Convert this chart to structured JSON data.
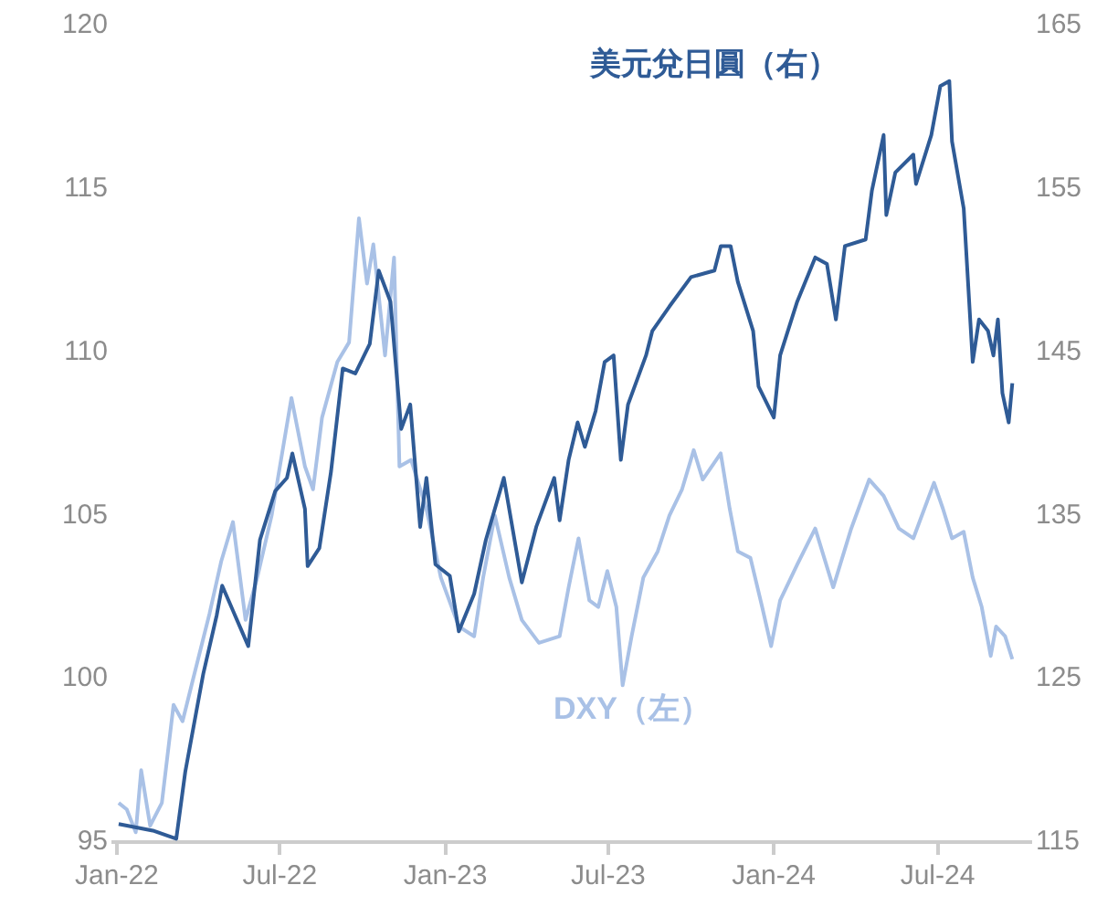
{
  "chart_data": {
    "type": "line",
    "marker": "none",
    "legend": false,
    "grid": false,
    "xlim": [
      "2021-12-28",
      "2024-10-12"
    ],
    "xticks": [
      {
        "value": "2022-01-01",
        "label": "Jan-22"
      },
      {
        "value": "2022-07-01",
        "label": "Jul-22"
      },
      {
        "value": "2023-01-01",
        "label": "Jan-23"
      },
      {
        "value": "2023-07-01",
        "label": "Jul-23"
      },
      {
        "value": "2024-01-01",
        "label": "Jan-24"
      },
      {
        "value": "2024-07-01",
        "label": "Jul-24"
      }
    ],
    "ylim": [
      95,
      120
    ],
    "yticks": [
      95,
      100,
      105,
      110,
      115,
      120
    ],
    "y2lim": [
      115,
      165
    ],
    "y2ticks": [
      115,
      125,
      135,
      145,
      155,
      165
    ],
    "series": [
      {
        "name": "DXY（左）",
        "color": "#a9c1e6",
        "x": [
          "2022-01-03",
          "2022-01-12",
          "2022-01-22",
          "2022-01-28",
          "2022-02-07",
          "2022-02-20",
          "2022-03-05",
          "2022-03-15",
          "2022-03-25",
          "2022-04-14",
          "2022-04-27",
          "2022-05-10",
          "2022-05-24",
          "2022-06-06",
          "2022-06-22",
          "2022-07-14",
          "2022-07-29",
          "2022-08-07",
          "2022-08-17",
          "2022-09-03",
          "2022-09-16",
          "2022-09-27",
          "2022-10-06",
          "2022-10-13",
          "2022-10-26",
          "2022-11-05",
          "2022-11-11",
          "2022-11-24",
          "2022-12-11",
          "2022-12-27",
          "2023-01-16",
          "2023-02-02",
          "2023-02-12",
          "2023-02-25",
          "2023-03-13",
          "2023-03-27",
          "2023-04-15",
          "2023-05-08",
          "2023-05-18",
          "2023-05-29",
          "2023-06-10",
          "2023-06-20",
          "2023-06-30",
          "2023-07-10",
          "2023-07-17",
          "2023-07-27",
          "2023-08-09",
          "2023-08-25",
          "2023-09-07",
          "2023-09-21",
          "2023-10-04",
          "2023-10-14",
          "2023-11-03",
          "2023-11-13",
          "2023-11-22",
          "2023-12-06",
          "2023-12-19",
          "2023-12-29",
          "2024-01-08",
          "2024-01-27",
          "2024-02-16",
          "2024-03-07",
          "2024-03-27",
          "2024-04-16",
          "2024-05-02",
          "2024-05-19",
          "2024-06-04",
          "2024-06-27",
          "2024-07-07",
          "2024-07-17",
          "2024-07-30",
          "2024-08-09",
          "2024-08-19",
          "2024-08-29",
          "2024-09-04",
          "2024-09-14",
          "2024-09-22"
        ],
        "values": [
          96.2,
          96.0,
          95.3,
          97.2,
          95.5,
          96.2,
          99.2,
          98.7,
          99.8,
          102.0,
          103.6,
          104.8,
          101.8,
          103.1,
          105.0,
          108.6,
          106.5,
          105.8,
          108.0,
          109.7,
          110.3,
          114.1,
          112.1,
          113.3,
          109.9,
          112.9,
          106.5,
          106.7,
          105.2,
          103.1,
          101.6,
          101.3,
          103.1,
          105.0,
          103.1,
          101.8,
          101.1,
          101.3,
          102.8,
          104.3,
          102.4,
          102.2,
          103.3,
          102.2,
          99.8,
          101.3,
          103.1,
          103.9,
          105.0,
          105.8,
          107.0,
          106.1,
          106.9,
          105.2,
          103.9,
          103.7,
          102.2,
          101.0,
          102.4,
          103.5,
          104.6,
          102.8,
          104.6,
          106.1,
          105.6,
          104.6,
          104.3,
          106.0,
          105.2,
          104.3,
          104.5,
          103.1,
          102.2,
          100.7,
          101.6,
          101.3,
          100.6
        ]
      },
      {
        "name": "美元兌日圓（右）",
        "color": "#2f5b96",
        "axis": "y2",
        "x": [
          "2022-01-03",
          "2022-02-10",
          "2022-03-08",
          "2022-03-18",
          "2022-04-07",
          "2022-04-22",
          "2022-04-28",
          "2022-05-20",
          "2022-05-27",
          "2022-06-09",
          "2022-06-26",
          "2022-07-09",
          "2022-07-15",
          "2022-07-29",
          "2022-08-01",
          "2022-08-14",
          "2022-08-27",
          "2022-09-09",
          "2022-09-23",
          "2022-10-09",
          "2022-10-19",
          "2022-11-01",
          "2022-11-13",
          "2022-11-23",
          "2022-12-04",
          "2022-12-11",
          "2022-12-21",
          "2023-01-06",
          "2023-01-16",
          "2023-02-02",
          "2023-02-15",
          "2023-03-07",
          "2023-03-27",
          "2023-04-12",
          "2023-05-02",
          "2023-05-08",
          "2023-05-18",
          "2023-05-28",
          "2023-06-05",
          "2023-06-17",
          "2023-06-27",
          "2023-07-07",
          "2023-07-15",
          "2023-07-23",
          "2023-08-12",
          "2023-08-19",
          "2023-09-07",
          "2023-10-01",
          "2023-10-27",
          "2023-11-03",
          "2023-11-14",
          "2023-11-22",
          "2023-12-09",
          "2023-12-15",
          "2024-01-01",
          "2024-01-08",
          "2024-01-27",
          "2024-02-16",
          "2024-02-29",
          "2024-03-10",
          "2024-03-20",
          "2024-04-12",
          "2024-04-19",
          "2024-05-02",
          "2024-05-05",
          "2024-05-15",
          "2024-06-04",
          "2024-06-07",
          "2024-06-24",
          "2024-07-04",
          "2024-07-14",
          "2024-07-17",
          "2024-07-30",
          "2024-08-09",
          "2024-08-16",
          "2024-08-26",
          "2024-09-01",
          "2024-09-06",
          "2024-09-11",
          "2024-09-18",
          "2024-09-22"
        ],
        "values": [
          116.1,
          115.7,
          115.2,
          119.3,
          125.3,
          128.9,
          130.7,
          127.9,
          127.0,
          133.5,
          136.5,
          137.3,
          138.8,
          135.4,
          131.9,
          133.0,
          137.7,
          144.0,
          143.7,
          145.5,
          150.0,
          148.1,
          140.3,
          141.8,
          134.3,
          137.3,
          132.0,
          131.3,
          127.9,
          130.2,
          133.5,
          137.3,
          130.9,
          134.3,
          137.3,
          134.7,
          138.4,
          140.7,
          139.2,
          141.4,
          144.4,
          144.8,
          138.4,
          141.8,
          144.8,
          146.3,
          147.8,
          149.6,
          150.0,
          151.5,
          151.5,
          149.3,
          146.3,
          142.9,
          141.0,
          144.8,
          148.1,
          150.8,
          150.4,
          147.0,
          151.5,
          151.9,
          154.9,
          158.3,
          153.4,
          156.0,
          157.1,
          155.3,
          158.3,
          161.3,
          161.6,
          157.9,
          153.8,
          144.4,
          147.0,
          146.3,
          144.8,
          147.0,
          142.5,
          140.7,
          143.1
        ]
      }
    ]
  }
}
